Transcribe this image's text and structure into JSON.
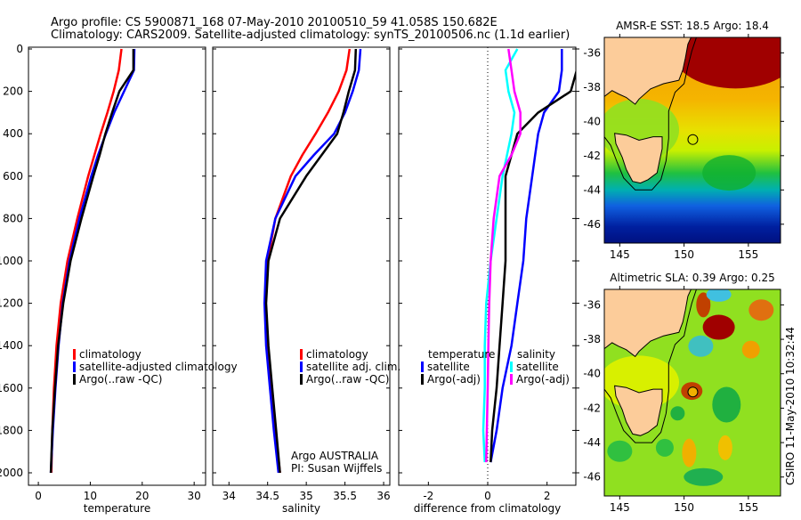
{
  "title": {
    "line1": "Argo profile: CS 5900871_168 07-May-2010 20100510_59 41.058S 150.682E",
    "line2": "Climatology: CARS2009. Satellite-adjusted climatology: synTS_20100506.nc (1.1d earlier)"
  },
  "credit": "CSIRO 11-May-2010 10:32:44",
  "colors": {
    "red": "#ff0000",
    "blue": "#0000ff",
    "black": "#000000",
    "cyan": "#00ffff",
    "magenta": "#ff00ff",
    "land": "#fccc9a"
  },
  "chart_data": [
    {
      "type": "line",
      "xlabel": "temperature",
      "ylabel": "",
      "xlim": [
        -1.9,
        32.2
      ],
      "ylim": [
        2000,
        0
      ],
      "xticks": [
        0,
        10,
        20,
        30
      ],
      "yticks": [
        0,
        200,
        400,
        600,
        800,
        1000,
        1200,
        1400,
        1600,
        1800,
        2000
      ],
      "depth": [
        0,
        100,
        200,
        300,
        400,
        500,
        600,
        800,
        1000,
        1200,
        1400,
        1600,
        1800,
        2000
      ],
      "series": [
        {
          "name": "climatology",
          "color": "#ff0000",
          "values": [
            16.0,
            15.5,
            14.5,
            13.3,
            12.0,
            10.8,
            9.6,
            7.5,
            5.6,
            4.3,
            3.5,
            3.0,
            2.7,
            2.5
          ]
        },
        {
          "name": "satellite-adjusted climatology",
          "color": "#0000ff",
          "values": [
            18.5,
            18.4,
            16.5,
            14.6,
            13.0,
            11.5,
            10.2,
            7.9,
            6.0,
            4.7,
            3.9,
            3.3,
            2.8,
            2.4
          ]
        },
        {
          "name": "Argo(..raw -QC)",
          "color": "#000000",
          "values": [
            18.3,
            18.3,
            15.6,
            14.2,
            12.9,
            11.8,
            10.6,
            8.3,
            6.2,
            4.8,
            3.8,
            3.2,
            2.7,
            2.4
          ]
        }
      ],
      "legend": [
        "climatology",
        "satellite-adjusted climatology",
        "Argo(..raw -QC)"
      ],
      "legend_placement": "center-right"
    },
    {
      "type": "line",
      "xlabel": "salinity",
      "xlim": [
        33.79,
        36.08
      ],
      "ylim": [
        2000,
        0
      ],
      "xticks": [
        34,
        34.5,
        35,
        35.5,
        36
      ],
      "depth": [
        0,
        100,
        200,
        300,
        400,
        500,
        600,
        800,
        1000,
        1200,
        1400,
        1600,
        1800,
        2000
      ],
      "series": [
        {
          "name": "climatology",
          "color": "#ff0000",
          "values": [
            35.56,
            35.52,
            35.42,
            35.28,
            35.12,
            34.95,
            34.8,
            34.6,
            34.5,
            34.47,
            34.5,
            34.55,
            34.6,
            34.66
          ]
        },
        {
          "name": "satellite adj. clim.",
          "color": "#0000ff",
          "values": [
            35.7,
            35.68,
            35.6,
            35.5,
            35.36,
            35.1,
            34.86,
            34.6,
            34.48,
            34.46,
            34.48,
            34.53,
            34.58,
            34.64
          ]
        },
        {
          "name": "Argo(..raw -QC)",
          "color": "#000000",
          "values": [
            35.64,
            35.63,
            35.55,
            35.48,
            35.4,
            35.2,
            35.0,
            34.66,
            34.51,
            34.48,
            34.51,
            34.56,
            34.61,
            34.66
          ]
        }
      ],
      "legend": [
        "climatology",
        "satellite adj. clim.",
        "Argo(..raw -QC)"
      ],
      "annotation": [
        "Argo AUSTRALIA",
        "PI: Susan Wijffels"
      ]
    },
    {
      "type": "line",
      "xlabel": "difference from climatology",
      "xlim": [
        -3.0,
        2.97
      ],
      "ylim": [
        2000,
        0
      ],
      "xticks": [
        -2,
        0,
        2
      ],
      "depth": [
        0,
        100,
        200,
        300,
        400,
        500,
        600,
        800,
        1000,
        1200,
        1400,
        1600,
        1800,
        1950
      ],
      "series": [
        {
          "name": "temperature satellite",
          "color": "#0000ff",
          "values": [
            2.5,
            2.5,
            2.4,
            1.9,
            1.7,
            1.6,
            1.5,
            1.3,
            1.2,
            1.0,
            0.8,
            0.5,
            0.3,
            0.1
          ]
        },
        {
          "name": "temperature Argo(-adj)",
          "color": "#000000",
          "values": [
            3.0,
            3.0,
            2.8,
            1.7,
            1.0,
            0.8,
            0.6,
            0.6,
            0.6,
            0.5,
            0.4,
            0.3,
            0.15,
            0.1
          ]
        },
        {
          "name": "salinity satellite",
          "color": "#00ffff",
          "values": [
            1.0,
            0.6,
            0.7,
            0.9,
            0.8,
            0.65,
            0.5,
            0.3,
            0.1,
            -0.05,
            -0.1,
            -0.1,
            -0.15,
            -0.1
          ]
        },
        {
          "name": "salinity Argo(-adj)",
          "color": "#ff00ff",
          "values": [
            0.7,
            0.8,
            0.9,
            1.1,
            1.1,
            0.8,
            0.4,
            0.2,
            0.1,
            0.05,
            0.02,
            0.0,
            -0.03,
            -0.05
          ]
        }
      ],
      "legend_headers": [
        "temperature",
        "salinity"
      ],
      "legend": [
        "satellite",
        "Argo(-adj)",
        "satellite",
        "Argo(-adj)"
      ]
    },
    {
      "type": "heatmap",
      "title": "AMSR-E SST: 18.5 Argo: 18.4",
      "xlim": [
        143.8,
        157.5
      ],
      "ylim": [
        -47.1,
        -35.1
      ],
      "xticks": [
        145,
        150,
        155
      ],
      "yticks": [
        -36,
        -38,
        -40,
        -42,
        -44,
        -46
      ],
      "marker": {
        "lon": 150.682,
        "lat": -41.058
      }
    },
    {
      "type": "heatmap",
      "title": "Altimetric SLA: 0.39 Argo: 0.25",
      "xlim": [
        143.8,
        157.5
      ],
      "ylim": [
        -47.1,
        -35.1
      ],
      "xticks": [
        145,
        150,
        155
      ],
      "yticks": [
        -36,
        -38,
        -40,
        -42,
        -44,
        -46
      ],
      "marker": {
        "lon": 150.682,
        "lat": -41.058
      }
    }
  ]
}
